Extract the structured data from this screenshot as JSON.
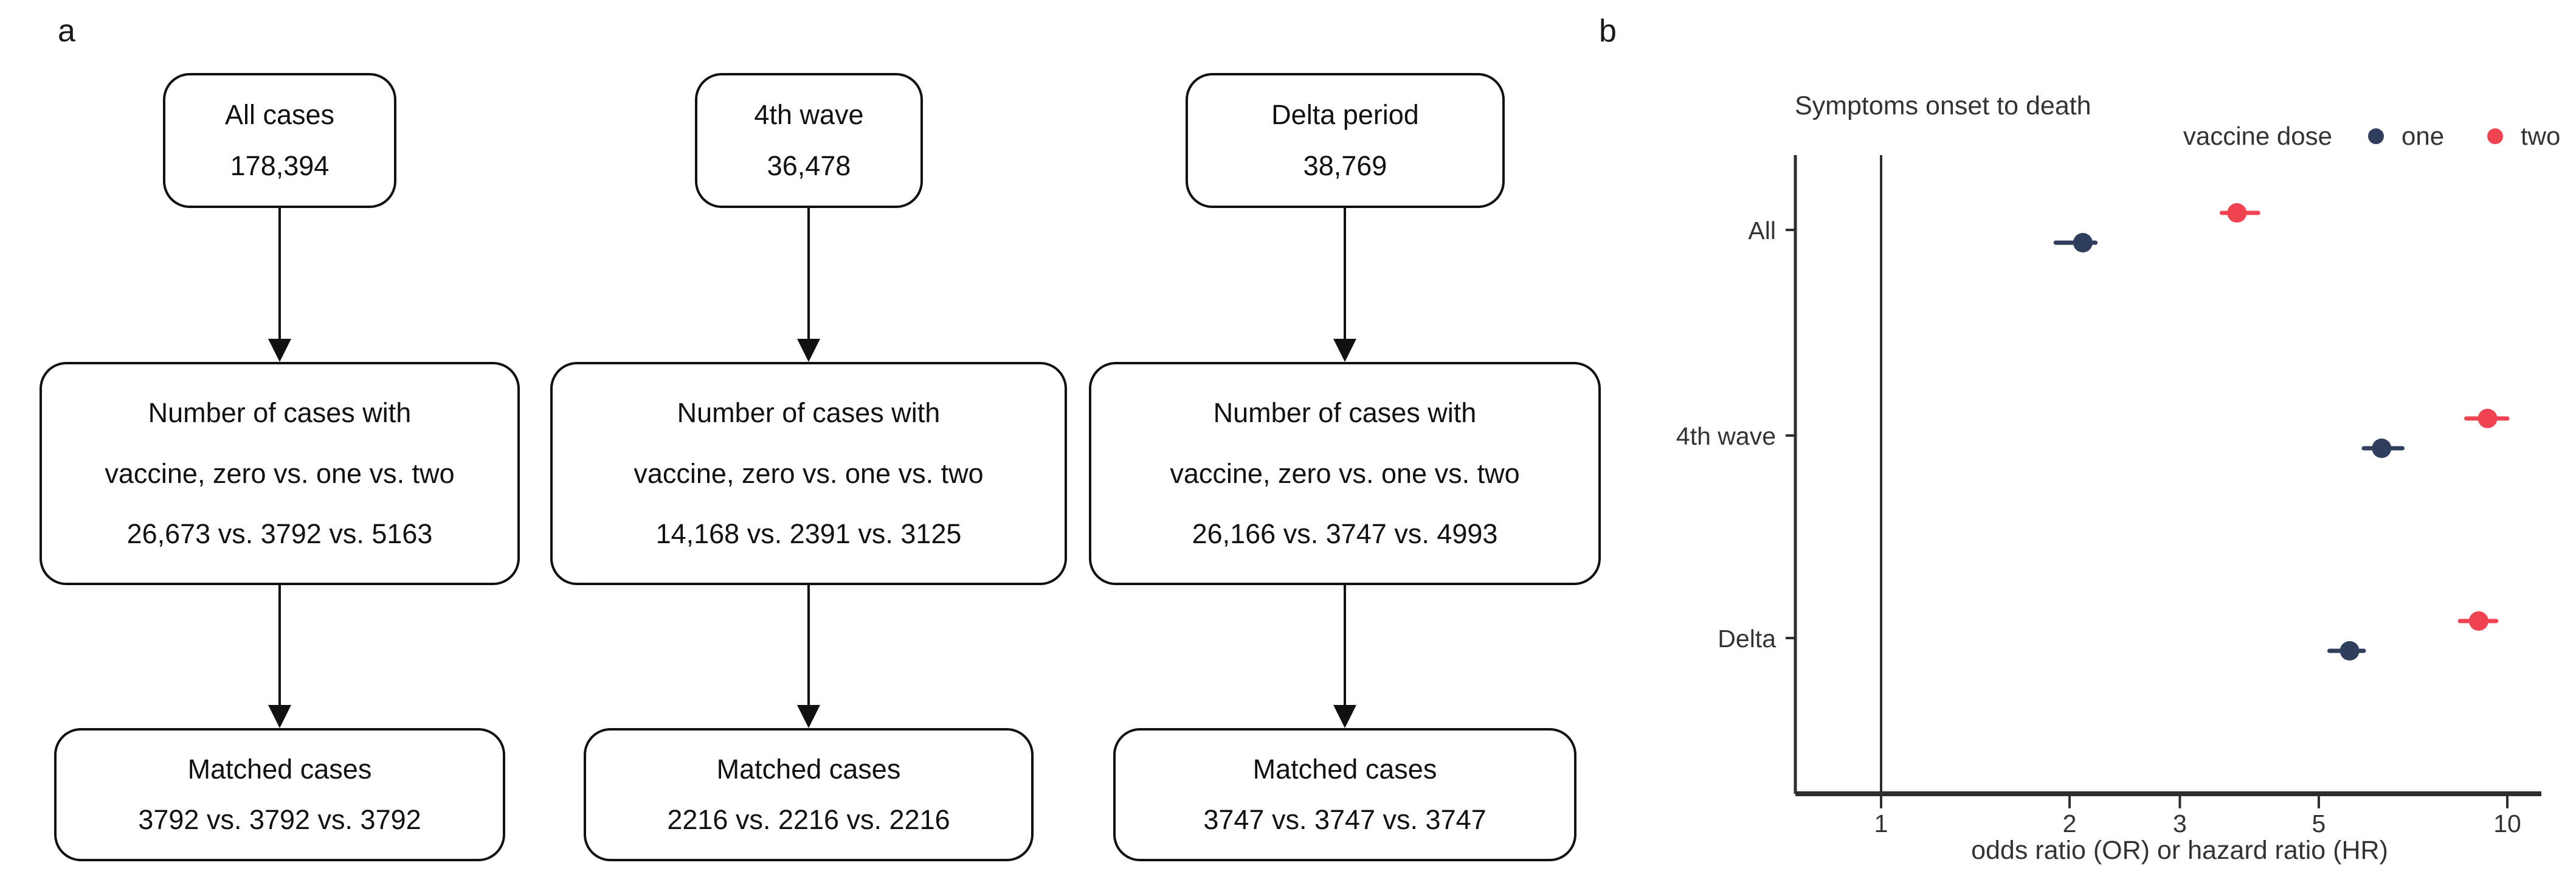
{
  "panel_a": {
    "label": "a",
    "flowchart": {
      "columns": [
        {
          "top": {
            "lines": [
              "All cases",
              "178,394"
            ]
          },
          "middle": {
            "lines": [
              "Number of cases with",
              "vaccine, zero vs. one vs. two",
              "26,673 vs. 3792 vs. 5163"
            ]
          },
          "bottom": {
            "lines": [
              "Matched cases",
              "3792 vs. 3792 vs. 3792"
            ]
          }
        },
        {
          "top": {
            "lines": [
              "4th wave",
              "36,478"
            ]
          },
          "middle": {
            "lines": [
              "Number of cases with",
              "vaccine, zero vs. one vs. two",
              "14,168 vs. 2391 vs. 3125"
            ]
          },
          "bottom": {
            "lines": [
              "Matched cases",
              "2216 vs. 2216 vs. 2216"
            ]
          }
        },
        {
          "top": {
            "lines": [
              "Delta period",
              "38,769"
            ]
          },
          "middle": {
            "lines": [
              "Number of cases with",
              "vaccine, zero vs. one vs. two",
              "26,166 vs. 3747 vs. 4993"
            ]
          },
          "bottom": {
            "lines": [
              "Matched cases",
              "3747 vs. 3747 vs. 3747"
            ]
          }
        }
      ]
    }
  },
  "panel_b": {
    "label": "b"
  },
  "chart_data": {
    "type": "scatter",
    "title": "Symptoms onset to death",
    "xlabel": "odds ratio (OR) or hazard ratio (HR)",
    "legend_title": "vaccine dose",
    "legend_position": "top-right",
    "x_scale": "log10",
    "x_ticks": [
      1,
      2,
      3,
      5,
      10
    ],
    "xlim": [
      0.72,
      11.5
    ],
    "reference_line_x": 1,
    "categories": [
      "All",
      "4th wave",
      "Delta"
    ],
    "series": [
      {
        "name": "one",
        "color": "#2f3e5c",
        "points": [
          {
            "category": "All",
            "value": 2.1,
            "ci": [
              1.9,
              2.2
            ]
          },
          {
            "category": "4th wave",
            "value": 6.3,
            "ci": [
              5.9,
              6.8
            ]
          },
          {
            "category": "Delta",
            "value": 5.6,
            "ci": [
              5.2,
              5.9
            ]
          }
        ]
      },
      {
        "name": "two",
        "color": "#ef4352",
        "points": [
          {
            "category": "All",
            "value": 3.7,
            "ci": [
              3.5,
              4.0
            ]
          },
          {
            "category": "4th wave",
            "value": 9.3,
            "ci": [
              8.6,
              10.0
            ]
          },
          {
            "category": "Delta",
            "value": 9.0,
            "ci": [
              8.4,
              9.6
            ]
          }
        ]
      }
    ]
  }
}
